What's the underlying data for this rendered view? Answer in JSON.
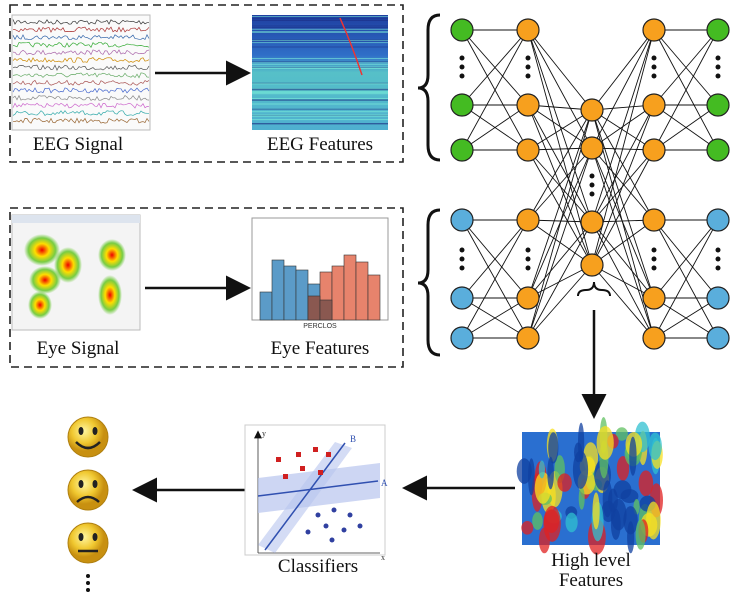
{
  "panels": [
    {
      "label": "EEG Signal"
    },
    {
      "label": "EEG Features"
    },
    {
      "label": "Eye Signal"
    },
    {
      "label": "Eye Features"
    }
  ],
  "eye_features_axis": "PERCLOS",
  "classifier": {
    "label": "Classifiers",
    "line_a": "A",
    "line_b": "B",
    "x_axis": "x",
    "y_axis": "y"
  },
  "high_level": {
    "label_lines": [
      "High level",
      "Features"
    ]
  }
}
